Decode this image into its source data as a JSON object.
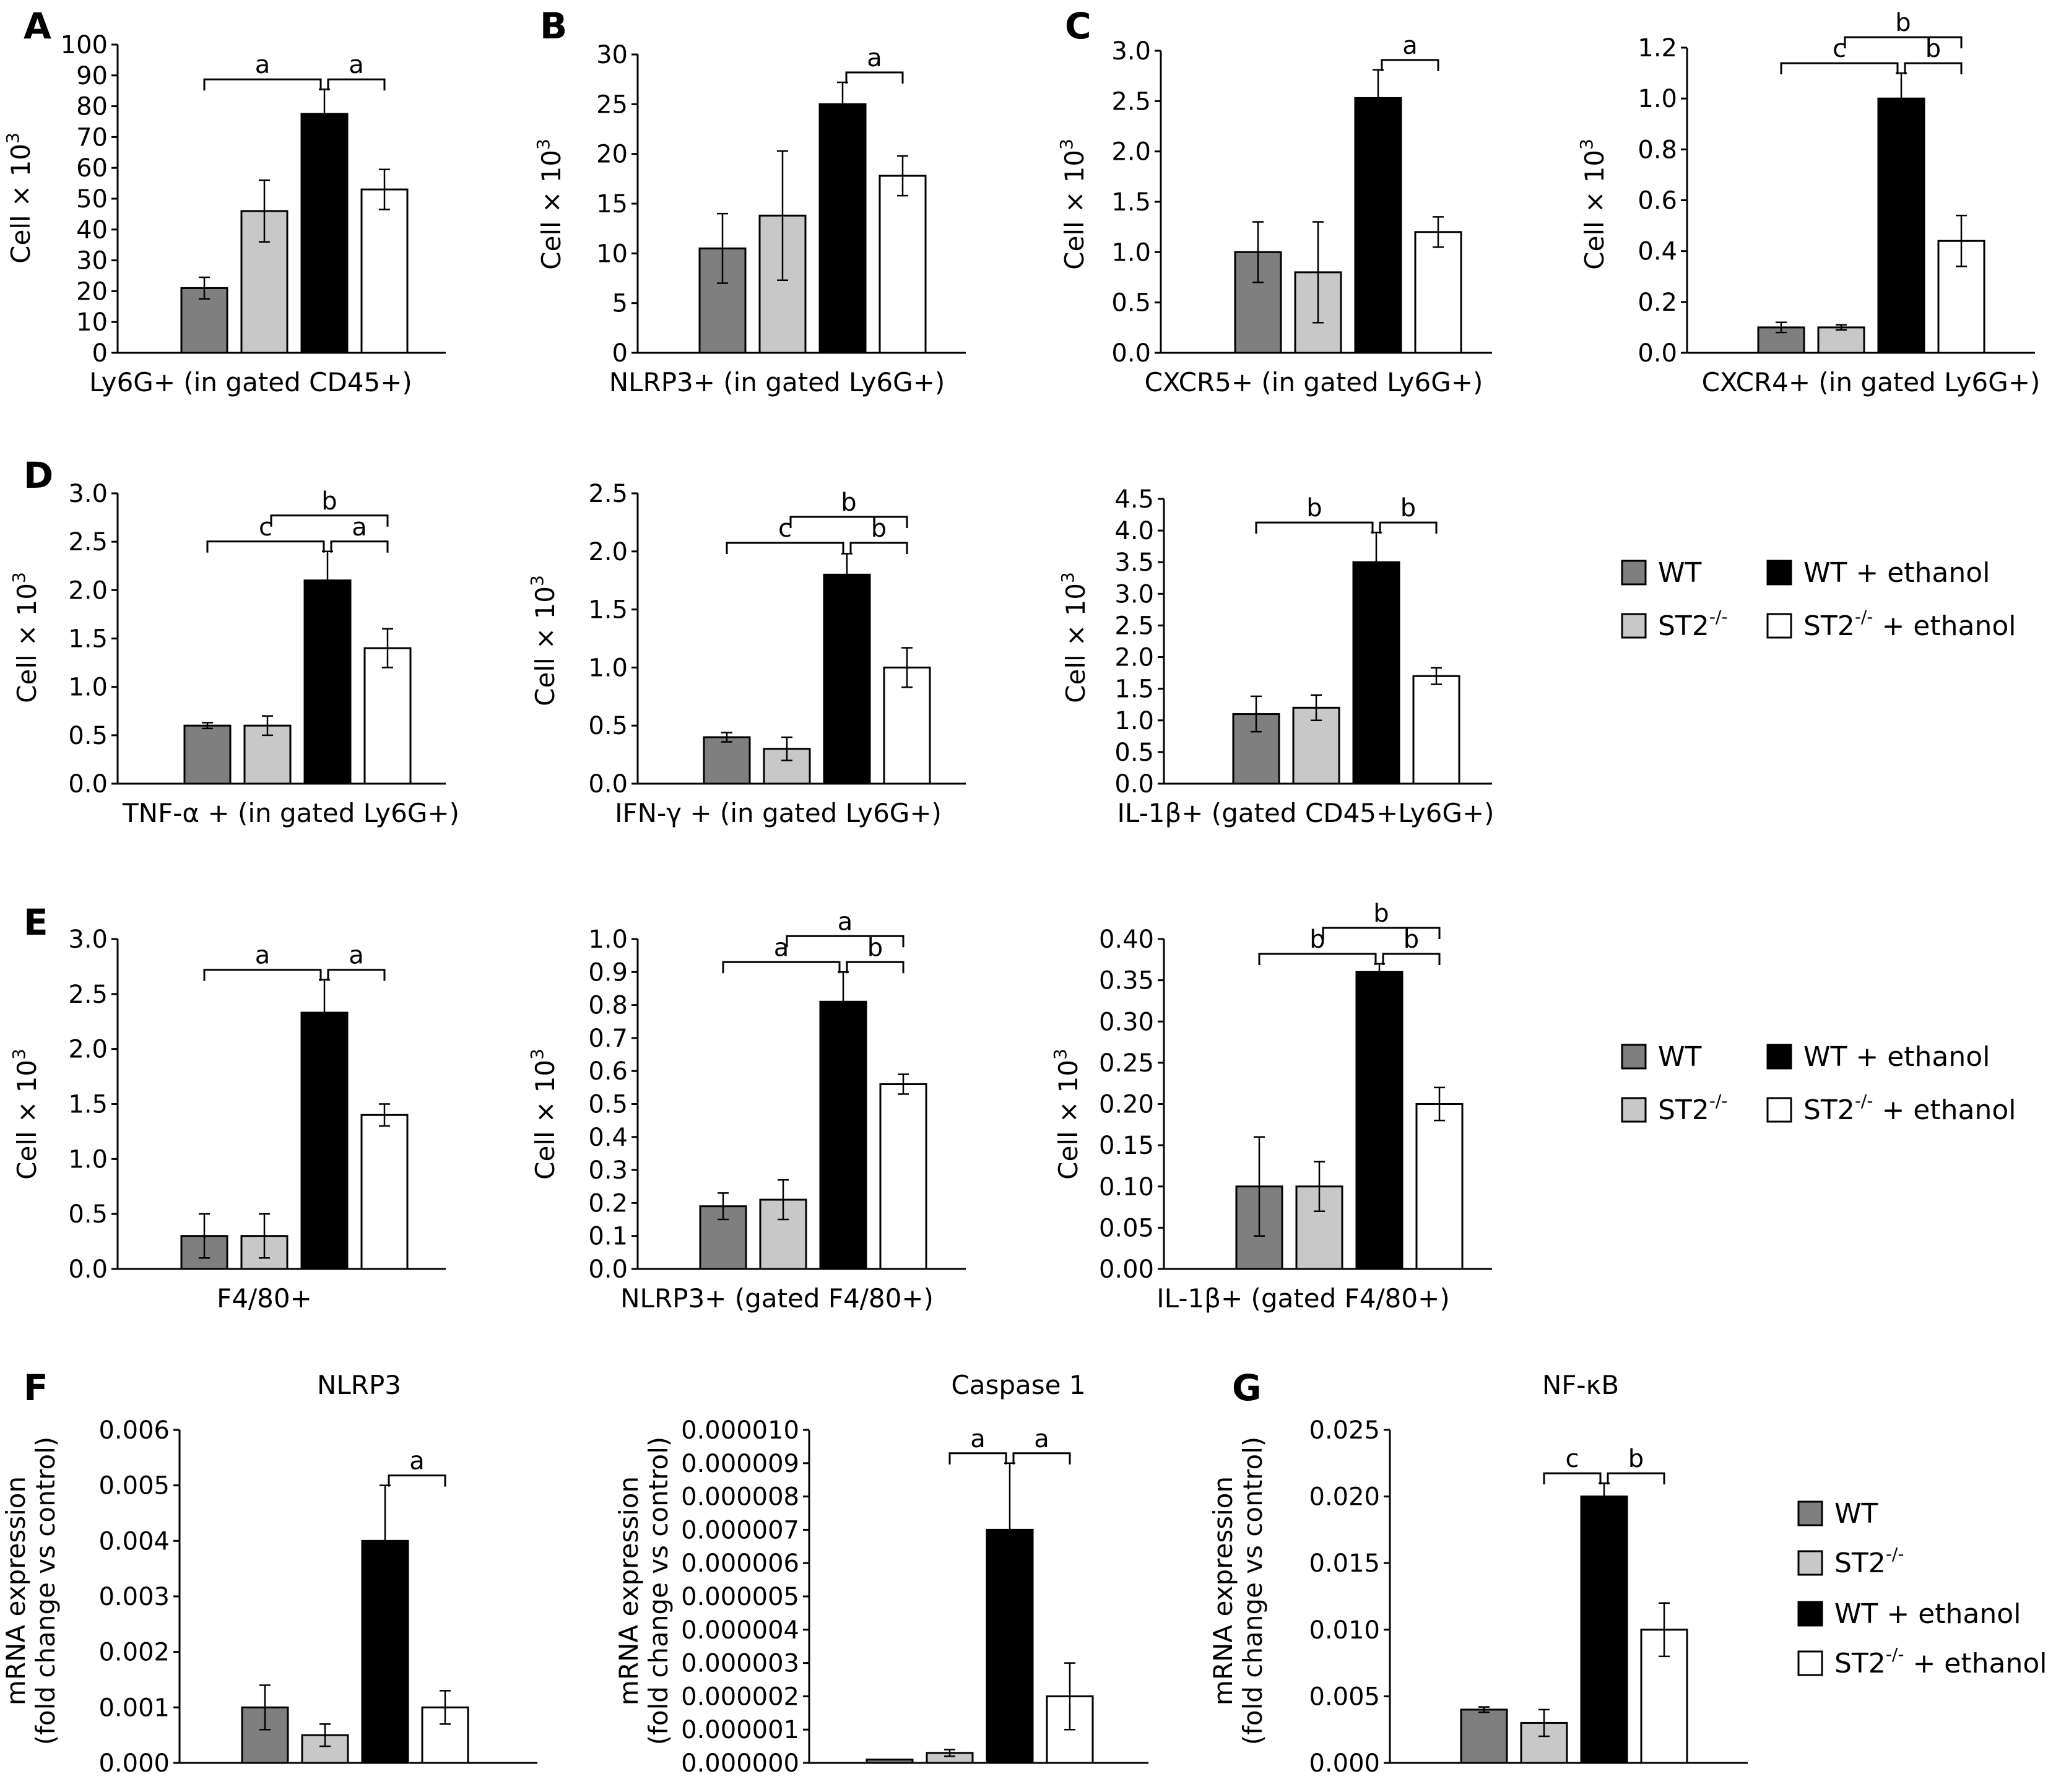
{
  "figure": {
    "series": [
      {
        "name": "WT",
        "color": "#7f7f7f"
      },
      {
        "name": "ST2-/-",
        "color": "#c8c8c8"
      },
      {
        "name": "WT + ethanol",
        "color": "#000000"
      },
      {
        "name": "ST2-/- + ethanol",
        "color": "#ffffff"
      }
    ]
  },
  "legends": [
    {
      "items": [
        "WT",
        "ST2",
        "WT + ethanol",
        "ST2",
        "+ ethanol"
      ],
      "sup": [
        "-/-",
        "-/-"
      ]
    },
    {
      "items": [
        "WT",
        "ST2",
        "WT + ethanol",
        "ST2",
        "+ ethanol"
      ],
      "sup": [
        "-/-",
        "-/-"
      ]
    },
    {
      "items": [
        "WT",
        "ST2",
        "WT + ethanol",
        "ST2",
        "+ ethanol"
      ],
      "sup": [
        "-/-",
        "-/-"
      ]
    }
  ],
  "chart_data": [
    {
      "type": "bar",
      "panel": "A",
      "title": "",
      "xlabel": "Ly6G+ (in gated CD45+)",
      "ylabel": "Cell × 10",
      "ylabel_sup": "3",
      "ylim": [
        0,
        100
      ],
      "ticks": [
        "0",
        "10",
        "20",
        "30",
        "40",
        "50",
        "60",
        "70",
        "80",
        "90",
        "100"
      ],
      "values": [
        21,
        46,
        77.5,
        53
      ],
      "errors": [
        3.5,
        10,
        8,
        6.5
      ],
      "annotations": [
        {
          "from": 0,
          "to": 2,
          "level": 1,
          "label": "a"
        },
        {
          "from": 2,
          "to": 3,
          "level": 1,
          "label": "a"
        }
      ]
    },
    {
      "type": "bar",
      "panel": "B",
      "title": "",
      "xlabel": "NLRP3+ (in gated Ly6G+)",
      "ylabel": "Cell × 10",
      "ylabel_sup": "3",
      "ylim": [
        0,
        30
      ],
      "ticks": [
        "0",
        "5",
        "10",
        "15",
        "20",
        "25",
        "30"
      ],
      "values": [
        10.5,
        13.8,
        25,
        17.8
      ],
      "errors": [
        3.5,
        6.5,
        2.2,
        2
      ],
      "annotations": [
        {
          "from": 2,
          "to": 3,
          "level": 1,
          "label": "a"
        }
      ]
    },
    {
      "type": "bar",
      "panel": "C",
      "title": "",
      "xlabel": "CXCR5+ (in gated Ly6G+)",
      "ylabel": "Cell × 10",
      "ylabel_sup": "3",
      "ylim": [
        0,
        3
      ],
      "ticks": [
        "0.0",
        "0.5",
        "1.0",
        "1.5",
        "2.0",
        "2.5",
        "3.0"
      ],
      "values": [
        1.0,
        0.8,
        2.53,
        1.2
      ],
      "errors": [
        0.3,
        0.5,
        0.28,
        0.15
      ],
      "annotations": [
        {
          "from": 2,
          "to": 3,
          "level": 1,
          "label": "a"
        }
      ]
    },
    {
      "type": "bar",
      "panel": "",
      "title": "",
      "xlabel": "CXCR4+ (in gated Ly6G+)",
      "ylabel": "Cell × 10",
      "ylabel_sup": "3",
      "ylim": [
        0,
        1.2
      ],
      "ticks": [
        "0.0",
        "0.2",
        "0.4",
        "0.6",
        "0.8",
        "1.0",
        "1.2"
      ],
      "values": [
        0.1,
        0.1,
        1.0,
        0.44
      ],
      "errors": [
        0.02,
        0.01,
        0.1,
        0.1
      ],
      "annotations": [
        {
          "from": 0,
          "to": 2,
          "level": 1,
          "label": "c"
        },
        {
          "from": 2,
          "to": 3,
          "level": 1,
          "label": "b"
        },
        {
          "from": 1,
          "to": 3,
          "level": 2,
          "label": "b"
        }
      ]
    },
    {
      "type": "bar",
      "panel": "D",
      "title": "",
      "xlabel": "TNF-α + (in gated Ly6G+)",
      "ylabel": "Cell × 10",
      "ylabel_sup": "3",
      "ylim": [
        0,
        3
      ],
      "ticks": [
        "0.0",
        "0.5",
        "1.0",
        "1.5",
        "2.0",
        "2.5",
        "3.0"
      ],
      "values": [
        0.6,
        0.6,
        2.1,
        1.4
      ],
      "errors": [
        0.03,
        0.1,
        0.3,
        0.2
      ],
      "annotations": [
        {
          "from": 0,
          "to": 2,
          "level": 1,
          "label": "c"
        },
        {
          "from": 2,
          "to": 3,
          "level": 1,
          "label": "a"
        },
        {
          "from": 1,
          "to": 3,
          "level": 2,
          "label": "b"
        }
      ]
    },
    {
      "type": "bar",
      "panel": "",
      "title": "",
      "xlabel": "IFN-γ + (in gated Ly6G+)",
      "ylabel": "Cell × 10",
      "ylabel_sup": "3",
      "ylim": [
        0,
        2.5
      ],
      "ticks": [
        "0.0",
        "0.5",
        "1.0",
        "1.5",
        "2.0",
        "2.5"
      ],
      "values": [
        0.4,
        0.3,
        1.8,
        1.0
      ],
      "errors": [
        0.04,
        0.1,
        0.18,
        0.17
      ],
      "annotations": [
        {
          "from": 0,
          "to": 2,
          "level": 1,
          "label": "c"
        },
        {
          "from": 2,
          "to": 3,
          "level": 1,
          "label": "b"
        },
        {
          "from": 1,
          "to": 3,
          "level": 2,
          "label": "b"
        }
      ]
    },
    {
      "type": "bar",
      "panel": "",
      "title": "",
      "xlabel": "IL-1β+ (gated CD45+Ly6G+)",
      "ylabel": "Cell × 10",
      "ylabel_sup": "3",
      "ylim": [
        0,
        4.5
      ],
      "ticks": [
        "0.0",
        "0.5",
        "1.0",
        "1.5",
        "2.0",
        "2.5",
        "3.0",
        "3.5",
        "4.0",
        "4.5"
      ],
      "values": [
        1.1,
        1.2,
        3.5,
        1.7
      ],
      "errors": [
        0.28,
        0.2,
        0.47,
        0.13
      ],
      "annotations": [
        {
          "from": 0,
          "to": 2,
          "level": 1,
          "label": "b"
        },
        {
          "from": 2,
          "to": 3,
          "level": 1,
          "label": "b"
        }
      ]
    },
    {
      "type": "bar",
      "panel": "E",
      "title": "",
      "xlabel": "F4/80+",
      "ylabel": "Cell × 10",
      "ylabel_sup": "3",
      "ylim": [
        0,
        3
      ],
      "ticks": [
        "0.0",
        "0.5",
        "1.0",
        "1.5",
        "2.0",
        "2.5",
        "3.0"
      ],
      "values": [
        0.3,
        0.3,
        2.33,
        1.4
      ],
      "errors": [
        0.2,
        0.2,
        0.3,
        0.1
      ],
      "annotations": [
        {
          "from": 0,
          "to": 2,
          "level": 1,
          "label": "a"
        },
        {
          "from": 2,
          "to": 3,
          "level": 1,
          "label": "a"
        }
      ]
    },
    {
      "type": "bar",
      "panel": "",
      "title": "",
      "xlabel": "NLRP3+ (gated F4/80+)",
      "ylabel": "Cell × 10",
      "ylabel_sup": "3",
      "ylim": [
        0,
        1
      ],
      "ticks": [
        "0.0",
        "0.1",
        "0.2",
        "0.3",
        "0.4",
        "0.5",
        "0.6",
        "0.7",
        "0.8",
        "0.9",
        "1.0"
      ],
      "values": [
        0.19,
        0.21,
        0.81,
        0.56
      ],
      "errors": [
        0.04,
        0.06,
        0.09,
        0.03
      ],
      "annotations": [
        {
          "from": 0,
          "to": 2,
          "level": 1,
          "label": "a"
        },
        {
          "from": 2,
          "to": 3,
          "level": 1,
          "label": "b"
        },
        {
          "from": 1,
          "to": 3,
          "level": 2,
          "label": "a"
        }
      ]
    },
    {
      "type": "bar",
      "panel": "",
      "title": "",
      "xlabel": "IL-1β+ (gated F4/80+)",
      "ylabel": "Cell × 10",
      "ylabel_sup": "3",
      "ylim": [
        0,
        0.4
      ],
      "ticks": [
        "0.00",
        "0.05",
        "0.10",
        "0.15",
        "0.20",
        "0.25",
        "0.30",
        "0.35",
        "0.40"
      ],
      "values": [
        0.1,
        0.1,
        0.36,
        0.2
      ],
      "errors": [
        0.06,
        0.03,
        0.01,
        0.02
      ],
      "annotations": [
        {
          "from": 0,
          "to": 2,
          "level": 1,
          "label": "b"
        },
        {
          "from": 2,
          "to": 3,
          "level": 1,
          "label": "b"
        },
        {
          "from": 1,
          "to": 3,
          "level": 2,
          "label": "b"
        }
      ]
    },
    {
      "type": "bar",
      "panel": "F",
      "title": "NLRP3",
      "xlabel": "",
      "ylabel": [
        "mRNA expression",
        "(fold change vs control)"
      ],
      "ylim": [
        0,
        0.006
      ],
      "ticks": [
        "0.000",
        "0.001",
        "0.002",
        "0.003",
        "0.004",
        "0.005",
        "0.006"
      ],
      "values": [
        0.001,
        0.0005,
        0.004,
        0.001
      ],
      "errors": [
        0.0004,
        0.0002,
        0.001,
        0.0003
      ],
      "annotations": [
        {
          "from": 2,
          "to": 3,
          "level": 1,
          "label": "a"
        }
      ]
    },
    {
      "type": "bar",
      "panel": "",
      "title": "Caspase 1",
      "xlabel": "",
      "ylabel": [
        "mRNA expression",
        "(fold change vs control)"
      ],
      "ylim": [
        0,
        1e-05
      ],
      "ticks": [
        "0.000000",
        "0.000001",
        "0.000002",
        "0.000003",
        "0.000004",
        "0.000005",
        "0.000006",
        "0.000007",
        "0.000008",
        "0.000009",
        "0.000010"
      ],
      "values": [
        1e-07,
        3e-07,
        7e-06,
        2e-06
      ],
      "errors": [
        0,
        1e-07,
        2e-06,
        1e-06
      ],
      "annotations": [
        {
          "from": 1,
          "to": 2,
          "level": 1,
          "label": "a"
        },
        {
          "from": 2,
          "to": 3,
          "level": 1,
          "label": "a"
        }
      ]
    },
    {
      "type": "bar",
      "panel": "G",
      "title": "NF-κB",
      "xlabel": "",
      "ylabel": [
        "mRNA expression",
        "(fold change vs control)"
      ],
      "ylim": [
        0,
        0.025
      ],
      "ticks": [
        "0.000",
        "0.005",
        "0.010",
        "0.015",
        "0.020",
        "0.025"
      ],
      "values": [
        0.004,
        0.003,
        0.02,
        0.01
      ],
      "errors": [
        0.0002,
        0.001,
        0.001,
        0.002
      ],
      "annotations": [
        {
          "from": 1,
          "to": 2,
          "level": 1,
          "label": "c"
        },
        {
          "from": 2,
          "to": 3,
          "level": 1,
          "label": "b"
        }
      ]
    }
  ]
}
